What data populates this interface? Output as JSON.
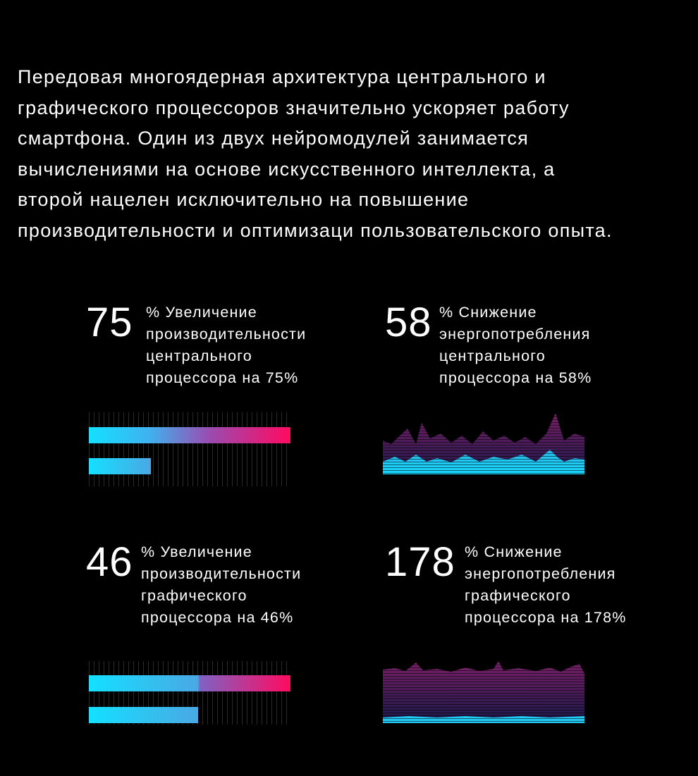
{
  "intro": [
    "Передовая многоядерная архитектура центрального и",
    "графического процессоров значительно ускоряет работу",
    "смартфона. Один из двух нейромодулей занимается",
    "вычислениями на основе искусственного интеллекта, а",
    "второй нацелен исключительно на повышение",
    "производительности и оптимизаци пользовательского опыта."
  ],
  "stats": [
    {
      "value": 75,
      "text": "% Увеличение производительности центрального процессора на 75%"
    },
    {
      "value": 58,
      "text": "% Снижение энергопотребления центрального процессора на 58%"
    },
    {
      "value": 46,
      "text": "% Увеличение производительности графического процессора на 46%"
    },
    {
      "value": 178,
      "text": "% Снижение энергопотребления графического процессора на 178%"
    }
  ]
}
